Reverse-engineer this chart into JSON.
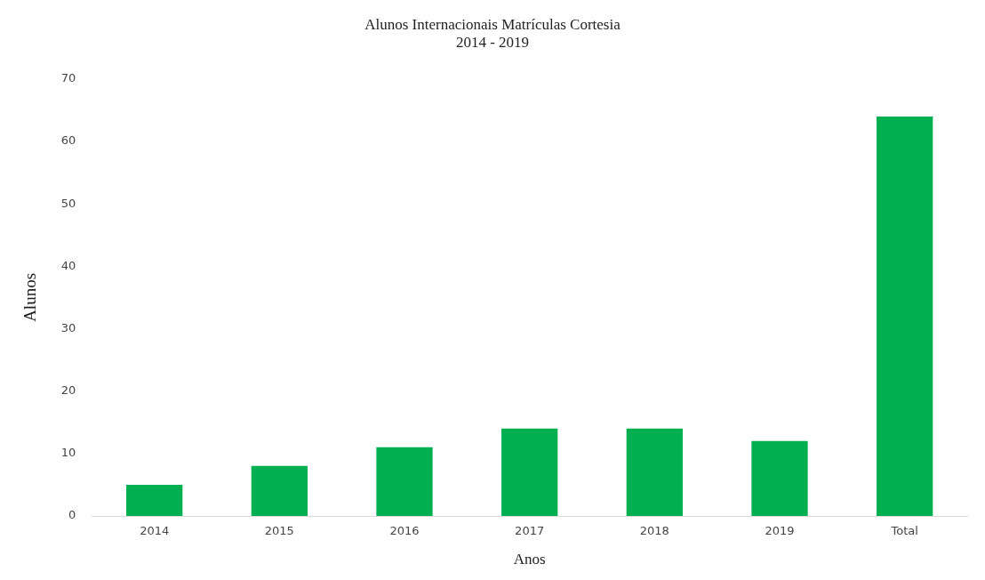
{
  "chart_data": {
    "type": "bar",
    "title": "Alunos Internacionais Matrículas Cortesia",
    "subtitle": "2014 - 2019",
    "xlabel": "Anos",
    "ylabel": "Alunos",
    "categories": [
      "2014",
      "2015",
      "2016",
      "2017",
      "2018",
      "2019",
      "Total"
    ],
    "values": [
      5,
      8,
      11,
      14,
      14,
      12,
      64
    ],
    "color": "#00b050",
    "ylim": [
      0,
      70
    ],
    "yticks": [
      0,
      10,
      20,
      30,
      40,
      50,
      60,
      70
    ],
    "grid": false,
    "legend": false
  }
}
